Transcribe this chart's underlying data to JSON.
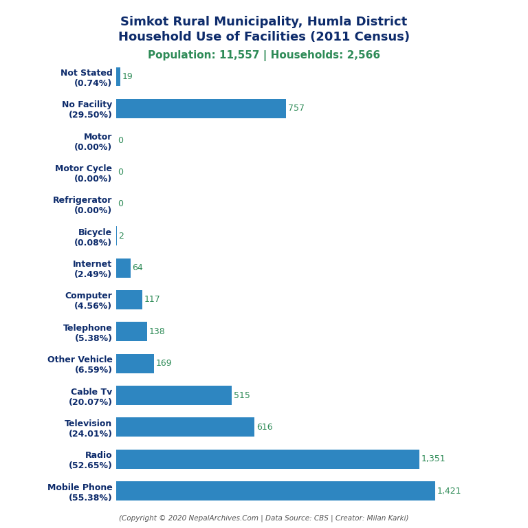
{
  "title_line1": "Simkot Rural Municipality, Humla District",
  "title_line2": "Household Use of Facilities (2011 Census)",
  "subtitle": "Population: 11,557 | Households: 2,566",
  "footer": "(Copyright © 2020 NepalArchives.Com | Data Source: CBS | Creator: Milan Karki)",
  "categories": [
    "Not Stated\n(0.74%)",
    "No Facility\n(29.50%)",
    "Motor\n(0.00%)",
    "Motor Cycle\n(0.00%)",
    "Refrigerator\n(0.00%)",
    "Bicycle\n(0.08%)",
    "Internet\n(2.49%)",
    "Computer\n(4.56%)",
    "Telephone\n(5.38%)",
    "Other Vehicle\n(6.59%)",
    "Cable Tv\n(20.07%)",
    "Television\n(24.01%)",
    "Radio\n(52.65%)",
    "Mobile Phone\n(55.38%)"
  ],
  "values": [
    19,
    757,
    0,
    0,
    0,
    2,
    64,
    117,
    138,
    169,
    515,
    616,
    1351,
    1421
  ],
  "bar_color": "#2E86C1",
  "value_color": "#2E8B57",
  "title_color": "#0D2B6B",
  "subtitle_color": "#2E8B57",
  "footer_color": "#555555",
  "background_color": "#FFFFFF",
  "xlim": [
    0,
    1600
  ],
  "figsize": [
    7.68,
    7.68
  ],
  "dpi": 100
}
